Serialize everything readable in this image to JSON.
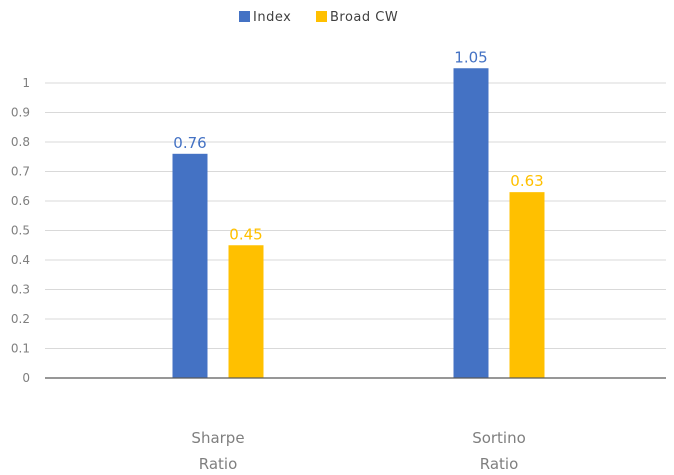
{
  "chart_data": {
    "type": "bar",
    "categories": [
      [
        "Sharpe",
        "Ratio"
      ],
      [
        "Sortino",
        "Ratio"
      ]
    ],
    "series": [
      {
        "name": "Index",
        "values": [
          0.76,
          1.05
        ],
        "labels": [
          "0.76",
          "1.05"
        ],
        "color": "#4472c4"
      },
      {
        "name": "Broad CW",
        "values": [
          0.45,
          0.63
        ],
        "labels": [
          "0.45",
          "0.63"
        ],
        "color": "#ffc000"
      }
    ],
    "yticks": [
      "0",
      "0.1",
      "0.2",
      "0.3",
      "0.4",
      "0.5",
      "0.6",
      "0.7",
      "0.8",
      "0.9",
      "1"
    ],
    "ylim": [
      0,
      1
    ],
    "grid": true,
    "legend_position": "top-center",
    "title": "",
    "xlabel": "",
    "ylabel": ""
  }
}
